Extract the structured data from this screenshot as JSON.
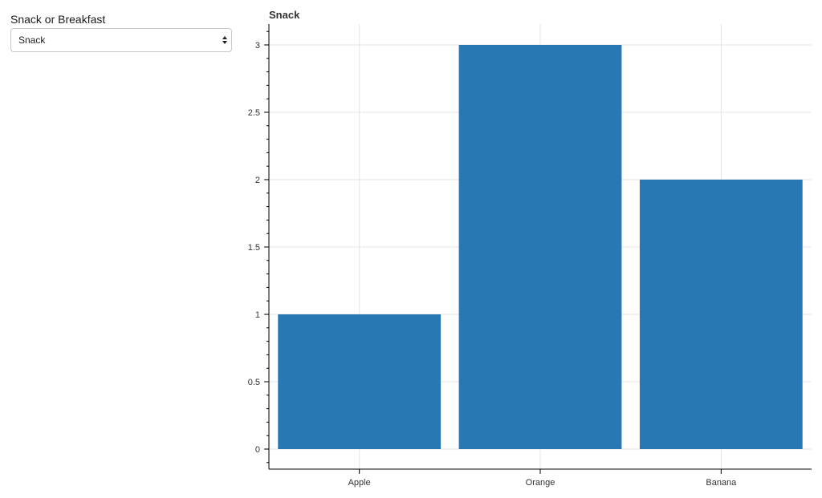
{
  "widget": {
    "label": "Snack or Breakfast",
    "selected": "Snack"
  },
  "colors": {
    "bar": "#2878b3",
    "grid": "#e5e5e5",
    "axis": "#000000"
  },
  "chart_data": {
    "type": "bar",
    "title": "Snack",
    "categories": [
      "Apple",
      "Orange",
      "Banana"
    ],
    "values": [
      1,
      3,
      2
    ],
    "xlabel": "",
    "ylabel": "",
    "ylim": [
      0,
      3.15
    ],
    "yticks": [
      0,
      0.5,
      1,
      1.5,
      2,
      2.5,
      3
    ],
    "ytick_labels": [
      "0",
      "0.5",
      "1",
      "1.5",
      "2",
      "2.5",
      "3"
    ],
    "grid": true
  }
}
